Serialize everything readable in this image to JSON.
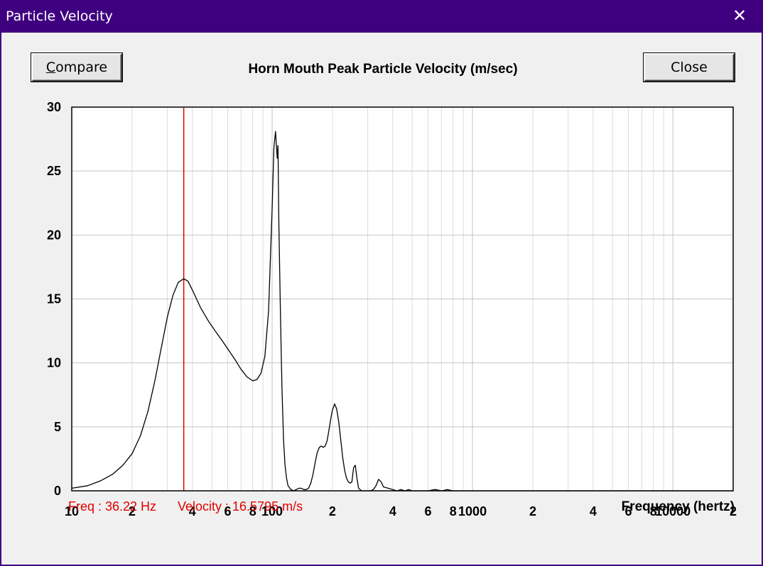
{
  "window": {
    "title": "Particle Velocity",
    "close_glyph": "✕"
  },
  "buttons": {
    "compare_label": "ompare",
    "compare_accel": "C",
    "close_label": "Close"
  },
  "readout": {
    "freq": "Freq : 36.22 Hz",
    "velocity": "Velocity : 16.5795 m/s"
  },
  "colors": {
    "titlebar": "#3f0080",
    "cursor": "#e00000",
    "curve": "#000000",
    "grid": "#c8c8c8"
  },
  "chart_data": {
    "type": "line",
    "title": "Horn Mouth Peak Particle Velocity (m/sec)",
    "xlabel": "Frequency (hertz)",
    "ylabel": "",
    "x_scale": "log",
    "xlim": [
      10,
      20000
    ],
    "ylim": [
      0,
      30
    ],
    "grid": true,
    "y_ticks": [
      "30",
      "25",
      "20",
      "15",
      "10",
      "5",
      "0"
    ],
    "x_ticks": [
      {
        "v": 10,
        "t": "10"
      },
      {
        "v": 20,
        "t": "2"
      },
      {
        "v": 40,
        "t": "4"
      },
      {
        "v": 60,
        "t": "6"
      },
      {
        "v": 80,
        "t": "8"
      },
      {
        "v": 100,
        "t": "100"
      },
      {
        "v": 200,
        "t": "2"
      },
      {
        "v": 400,
        "t": "4"
      },
      {
        "v": 600,
        "t": "6"
      },
      {
        "v": 800,
        "t": "8"
      },
      {
        "v": 1000,
        "t": "1000"
      },
      {
        "v": 2000,
        "t": "2"
      },
      {
        "v": 4000,
        "t": "4"
      },
      {
        "v": 6000,
        "t": "6"
      },
      {
        "v": 8000,
        "t": "8"
      },
      {
        "v": 10000,
        "t": "10000"
      },
      {
        "v": 20000,
        "t": "2"
      }
    ],
    "cursor_x": 36.22,
    "series": [
      {
        "x": [
          10,
          12,
          14,
          16,
          18,
          20,
          22,
          24,
          26,
          28,
          30,
          32,
          34,
          36.2,
          38,
          40,
          44,
          48,
          52,
          56,
          60,
          65,
          70,
          75,
          80,
          84,
          88,
          92,
          96,
          100,
          102,
          104,
          106,
          107,
          108,
          110,
          112,
          114,
          116,
          118,
          120,
          124,
          128,
          132,
          136,
          140,
          144,
          148,
          152,
          156,
          160,
          164,
          168,
          172,
          176,
          180,
          184,
          188,
          192,
          196,
          200,
          205,
          210,
          215,
          220,
          225,
          230,
          235,
          240,
          245,
          250,
          255,
          260,
          265,
          270,
          280,
          290,
          300,
          310,
          320,
          330,
          340,
          350,
          360,
          380,
          400,
          420,
          440,
          460,
          480,
          500,
          550,
          600,
          650,
          700,
          750,
          800,
          850,
          900,
          1000,
          1200,
          1500,
          2000,
          5000,
          10000,
          20000
        ],
        "y": [
          0.2,
          0.4,
          0.8,
          1.3,
          2.0,
          2.9,
          4.3,
          6.2,
          8.6,
          11.2,
          13.6,
          15.3,
          16.3,
          16.58,
          16.4,
          15.7,
          14.3,
          13.3,
          12.5,
          11.8,
          11.1,
          10.3,
          9.5,
          8.9,
          8.6,
          8.7,
          9.2,
          10.5,
          14.0,
          22.0,
          26.8,
          28.1,
          26.0,
          27.0,
          21.0,
          14.0,
          8.0,
          4.0,
          2.0,
          1.0,
          0.4,
          0.1,
          0.0,
          0.1,
          0.2,
          0.2,
          0.1,
          0.1,
          0.2,
          0.6,
          1.3,
          2.2,
          3.0,
          3.4,
          3.5,
          3.4,
          3.5,
          3.9,
          4.7,
          5.6,
          6.3,
          6.8,
          6.4,
          5.4,
          4.0,
          2.6,
          1.6,
          1.0,
          0.7,
          0.6,
          0.7,
          1.8,
          2.0,
          1.0,
          0.2,
          0.0,
          0.0,
          0.0,
          0.0,
          0.1,
          0.4,
          0.9,
          0.7,
          0.3,
          0.2,
          0.1,
          0.0,
          0.1,
          0.0,
          0.1,
          0.0,
          0.0,
          0.0,
          0.1,
          0.0,
          0.1,
          0.0,
          0.0,
          0.0,
          0.0,
          0.0,
          0.0,
          0.0,
          0.0,
          0.0,
          0.0
        ]
      }
    ]
  }
}
